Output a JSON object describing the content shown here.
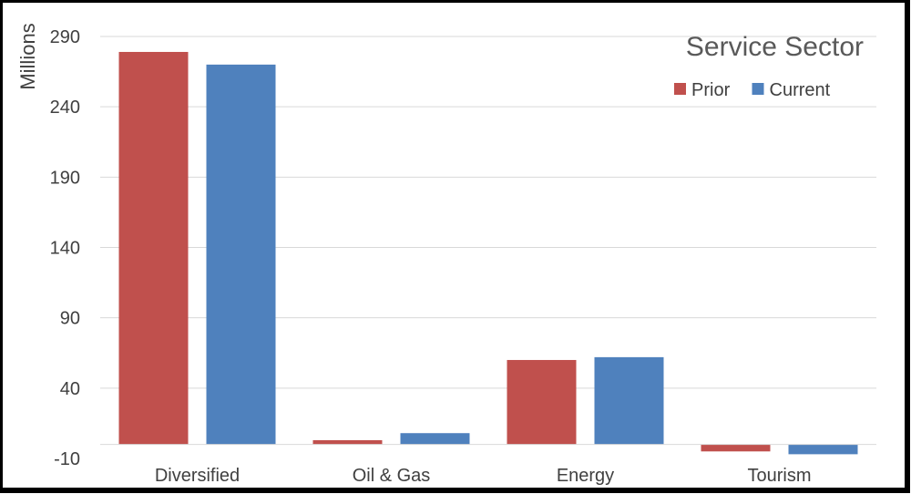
{
  "chart_data": {
    "type": "bar",
    "title": "Service Sector",
    "ylabel": "Millions",
    "xlabel": "",
    "categories": [
      "Diversified",
      "Oil & Gas",
      "Energy",
      "Tourism"
    ],
    "series": [
      {
        "name": "Prior",
        "color": "#C0504D",
        "values": [
          279,
          3,
          60,
          -5
        ]
      },
      {
        "name": "Current",
        "color": "#4F81BD",
        "values": [
          270,
          8,
          62,
          -7
        ]
      }
    ],
    "ylim": [
      -10,
      290
    ],
    "yticks": [
      290,
      240,
      190,
      140,
      90,
      40,
      -10
    ],
    "grid": true,
    "legend_position": "top-right"
  }
}
